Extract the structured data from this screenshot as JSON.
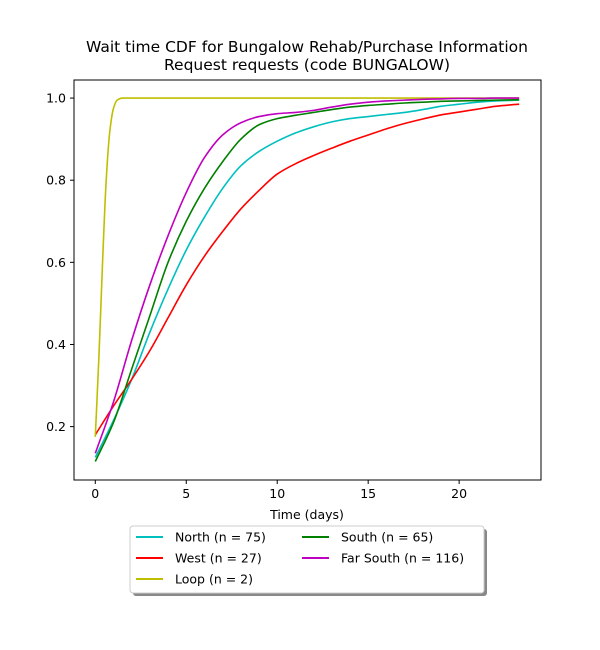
{
  "chart_data": {
    "type": "line",
    "title_lines": [
      "Wait time CDF for Bungalow Rehab/Purchase Information",
      "Request  requests (code BUNGALOW)"
    ],
    "xlabel": "Time (days)",
    "ylabel": "",
    "xlim": [
      -1.17,
      24.5
    ],
    "ylim": [
      0.07,
      1.044
    ],
    "x_ticks": [
      0,
      5,
      10,
      15,
      20
    ],
    "y_ticks": [
      0.2,
      0.4,
      0.6,
      0.8,
      1.0
    ],
    "x_tick_labels": [
      "0",
      "5",
      "10",
      "15",
      "20"
    ],
    "y_tick_labels": [
      "0.2",
      "0.4",
      "0.6",
      "0.8",
      "1.0"
    ],
    "grid": false,
    "legend_position": "below-center",
    "series": [
      {
        "name": "North (n = 75)",
        "color": "#00bfbf",
        "x": [
          0,
          1,
          2,
          3,
          4,
          5,
          6,
          7,
          8,
          9,
          10,
          11,
          12,
          13,
          14,
          15,
          16,
          17,
          18,
          19,
          20,
          21,
          22,
          23.3
        ],
        "y": [
          0.125,
          0.215,
          0.315,
          0.43,
          0.535,
          0.63,
          0.71,
          0.78,
          0.835,
          0.87,
          0.895,
          0.915,
          0.93,
          0.942,
          0.95,
          0.955,
          0.96,
          0.965,
          0.972,
          0.98,
          0.985,
          0.99,
          0.993,
          0.995
        ]
      },
      {
        "name": "West (n = 27)",
        "color": "#ff0000",
        "x": [
          0,
          1,
          2,
          3,
          4,
          5,
          6,
          7,
          8,
          9,
          10,
          11,
          12,
          13,
          14,
          15,
          16,
          17,
          18,
          19,
          20,
          21,
          22,
          23.3
        ],
        "y": [
          0.18,
          0.25,
          0.315,
          0.385,
          0.465,
          0.545,
          0.615,
          0.675,
          0.73,
          0.775,
          0.815,
          0.84,
          0.86,
          0.878,
          0.895,
          0.91,
          0.925,
          0.938,
          0.949,
          0.959,
          0.966,
          0.973,
          0.98,
          0.985
        ]
      },
      {
        "name": "Loop (n = 2)",
        "color": "#bfbf00",
        "x": [
          0,
          0.2,
          0.4,
          0.6,
          0.8,
          1.0,
          1.2,
          1.5,
          2,
          5,
          10,
          15,
          20,
          23.3
        ],
        "y": [
          0.175,
          0.37,
          0.6,
          0.8,
          0.92,
          0.975,
          0.995,
          1.0,
          1.0,
          1.0,
          1.0,
          1.0,
          1.0,
          1.0
        ]
      },
      {
        "name": "South (n = 65)",
        "color": "#008000",
        "x": [
          0,
          1,
          2,
          3,
          4,
          5,
          6,
          7,
          8,
          9,
          10,
          11,
          12,
          13,
          14,
          15,
          16,
          17,
          18,
          19,
          20,
          21,
          22,
          23.3
        ],
        "y": [
          0.115,
          0.21,
          0.34,
          0.47,
          0.6,
          0.7,
          0.78,
          0.845,
          0.9,
          0.935,
          0.95,
          0.958,
          0.965,
          0.972,
          0.978,
          0.982,
          0.985,
          0.988,
          0.99,
          0.992,
          0.993,
          0.994,
          0.995,
          0.996
        ]
      },
      {
        "name": "Far South (n = 116)",
        "color": "#bf00bf",
        "x": [
          0,
          1,
          2,
          3,
          4,
          5,
          6,
          7,
          8,
          9,
          10,
          11,
          12,
          13,
          14,
          15,
          16,
          17,
          18,
          19,
          20,
          21,
          22,
          23.3
        ],
        "y": [
          0.135,
          0.26,
          0.41,
          0.545,
          0.665,
          0.77,
          0.855,
          0.91,
          0.94,
          0.955,
          0.962,
          0.965,
          0.97,
          0.978,
          0.985,
          0.99,
          0.993,
          0.995,
          0.997,
          0.998,
          0.999,
          0.999,
          1.0,
          1.0
        ]
      }
    ]
  }
}
